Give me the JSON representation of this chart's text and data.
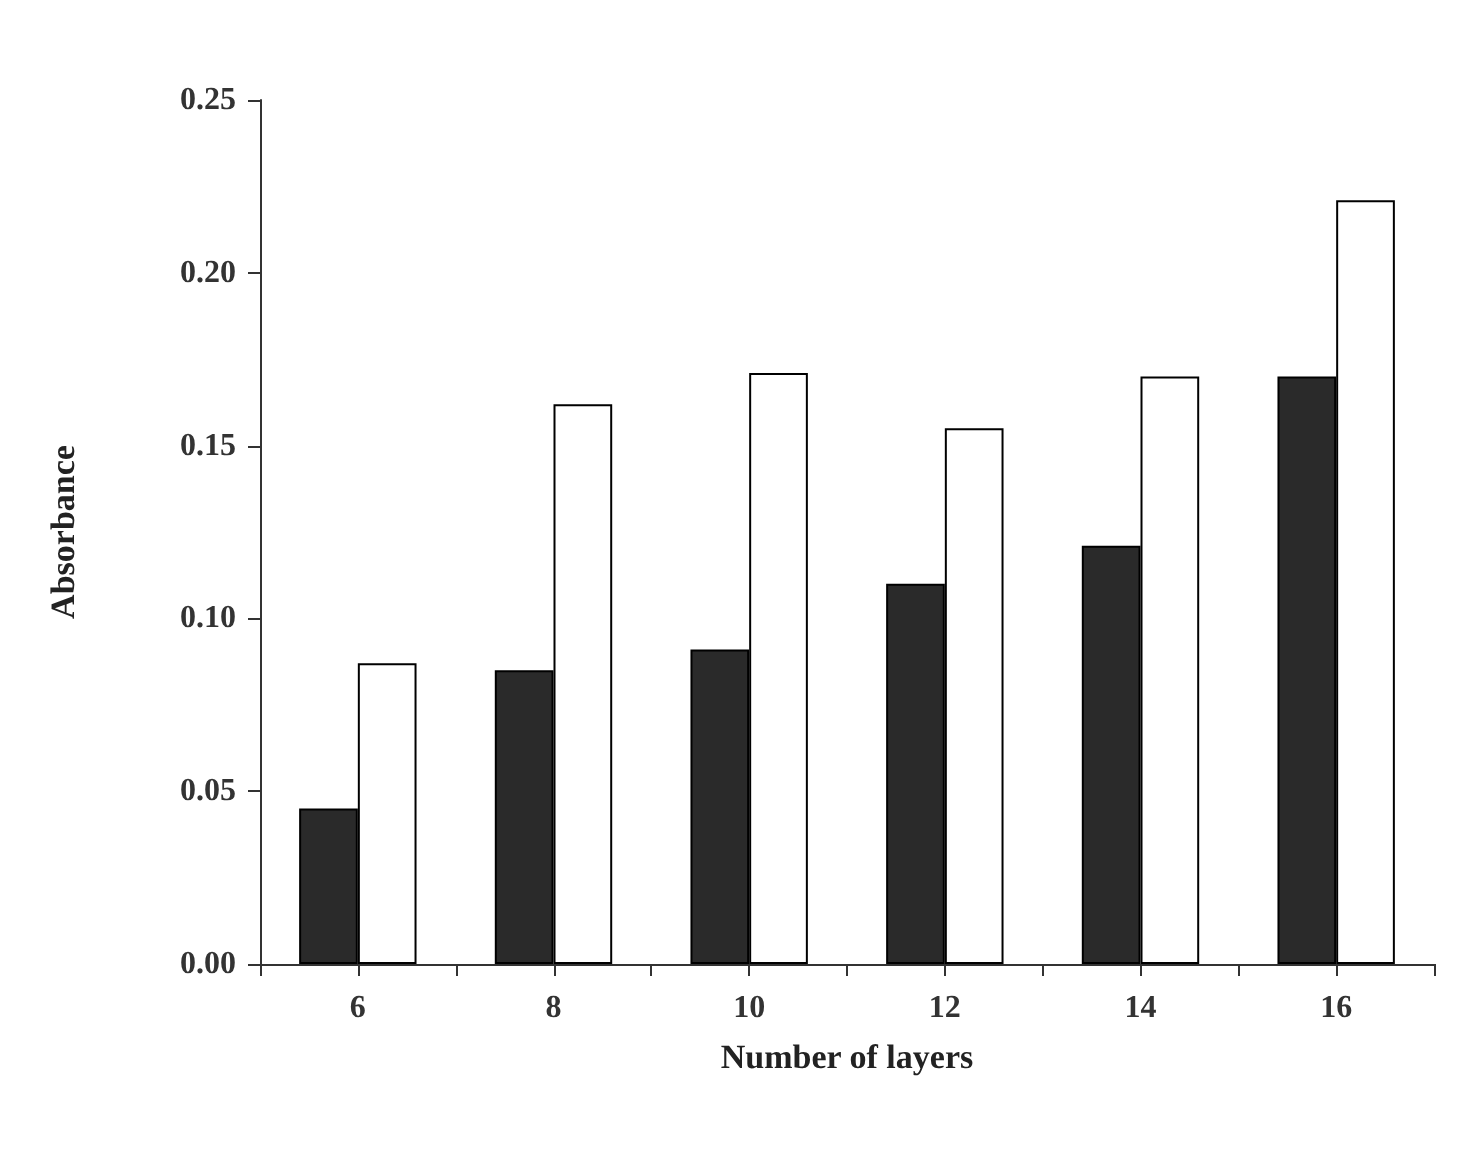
{
  "chart_data": {
    "type": "bar",
    "xlabel": "Number of layers",
    "ylabel": "Absorbance",
    "categories": [
      "6",
      "8",
      "10",
      "12",
      "14",
      "16"
    ],
    "series": [
      {
        "color": "#2a2a2a",
        "values": [
          0.045,
          0.085,
          0.091,
          0.11,
          0.121,
          0.17
        ]
      },
      {
        "color": "#ffffff",
        "values": [
          0.087,
          0.162,
          0.171,
          0.155,
          0.17,
          0.221
        ]
      }
    ],
    "ylim": [
      0,
      0.25
    ],
    "yticks": [
      {
        "value": 0,
        "label": "0.00"
      },
      {
        "value": 0.05,
        "label": "0.05"
      },
      {
        "value": 0.1,
        "label": "0.10"
      },
      {
        "value": 0.15,
        "label": "0.15"
      },
      {
        "value": 0.2,
        "label": "0.20"
      },
      {
        "value": 0.25,
        "label": "0.25"
      }
    ],
    "grid": false
  }
}
